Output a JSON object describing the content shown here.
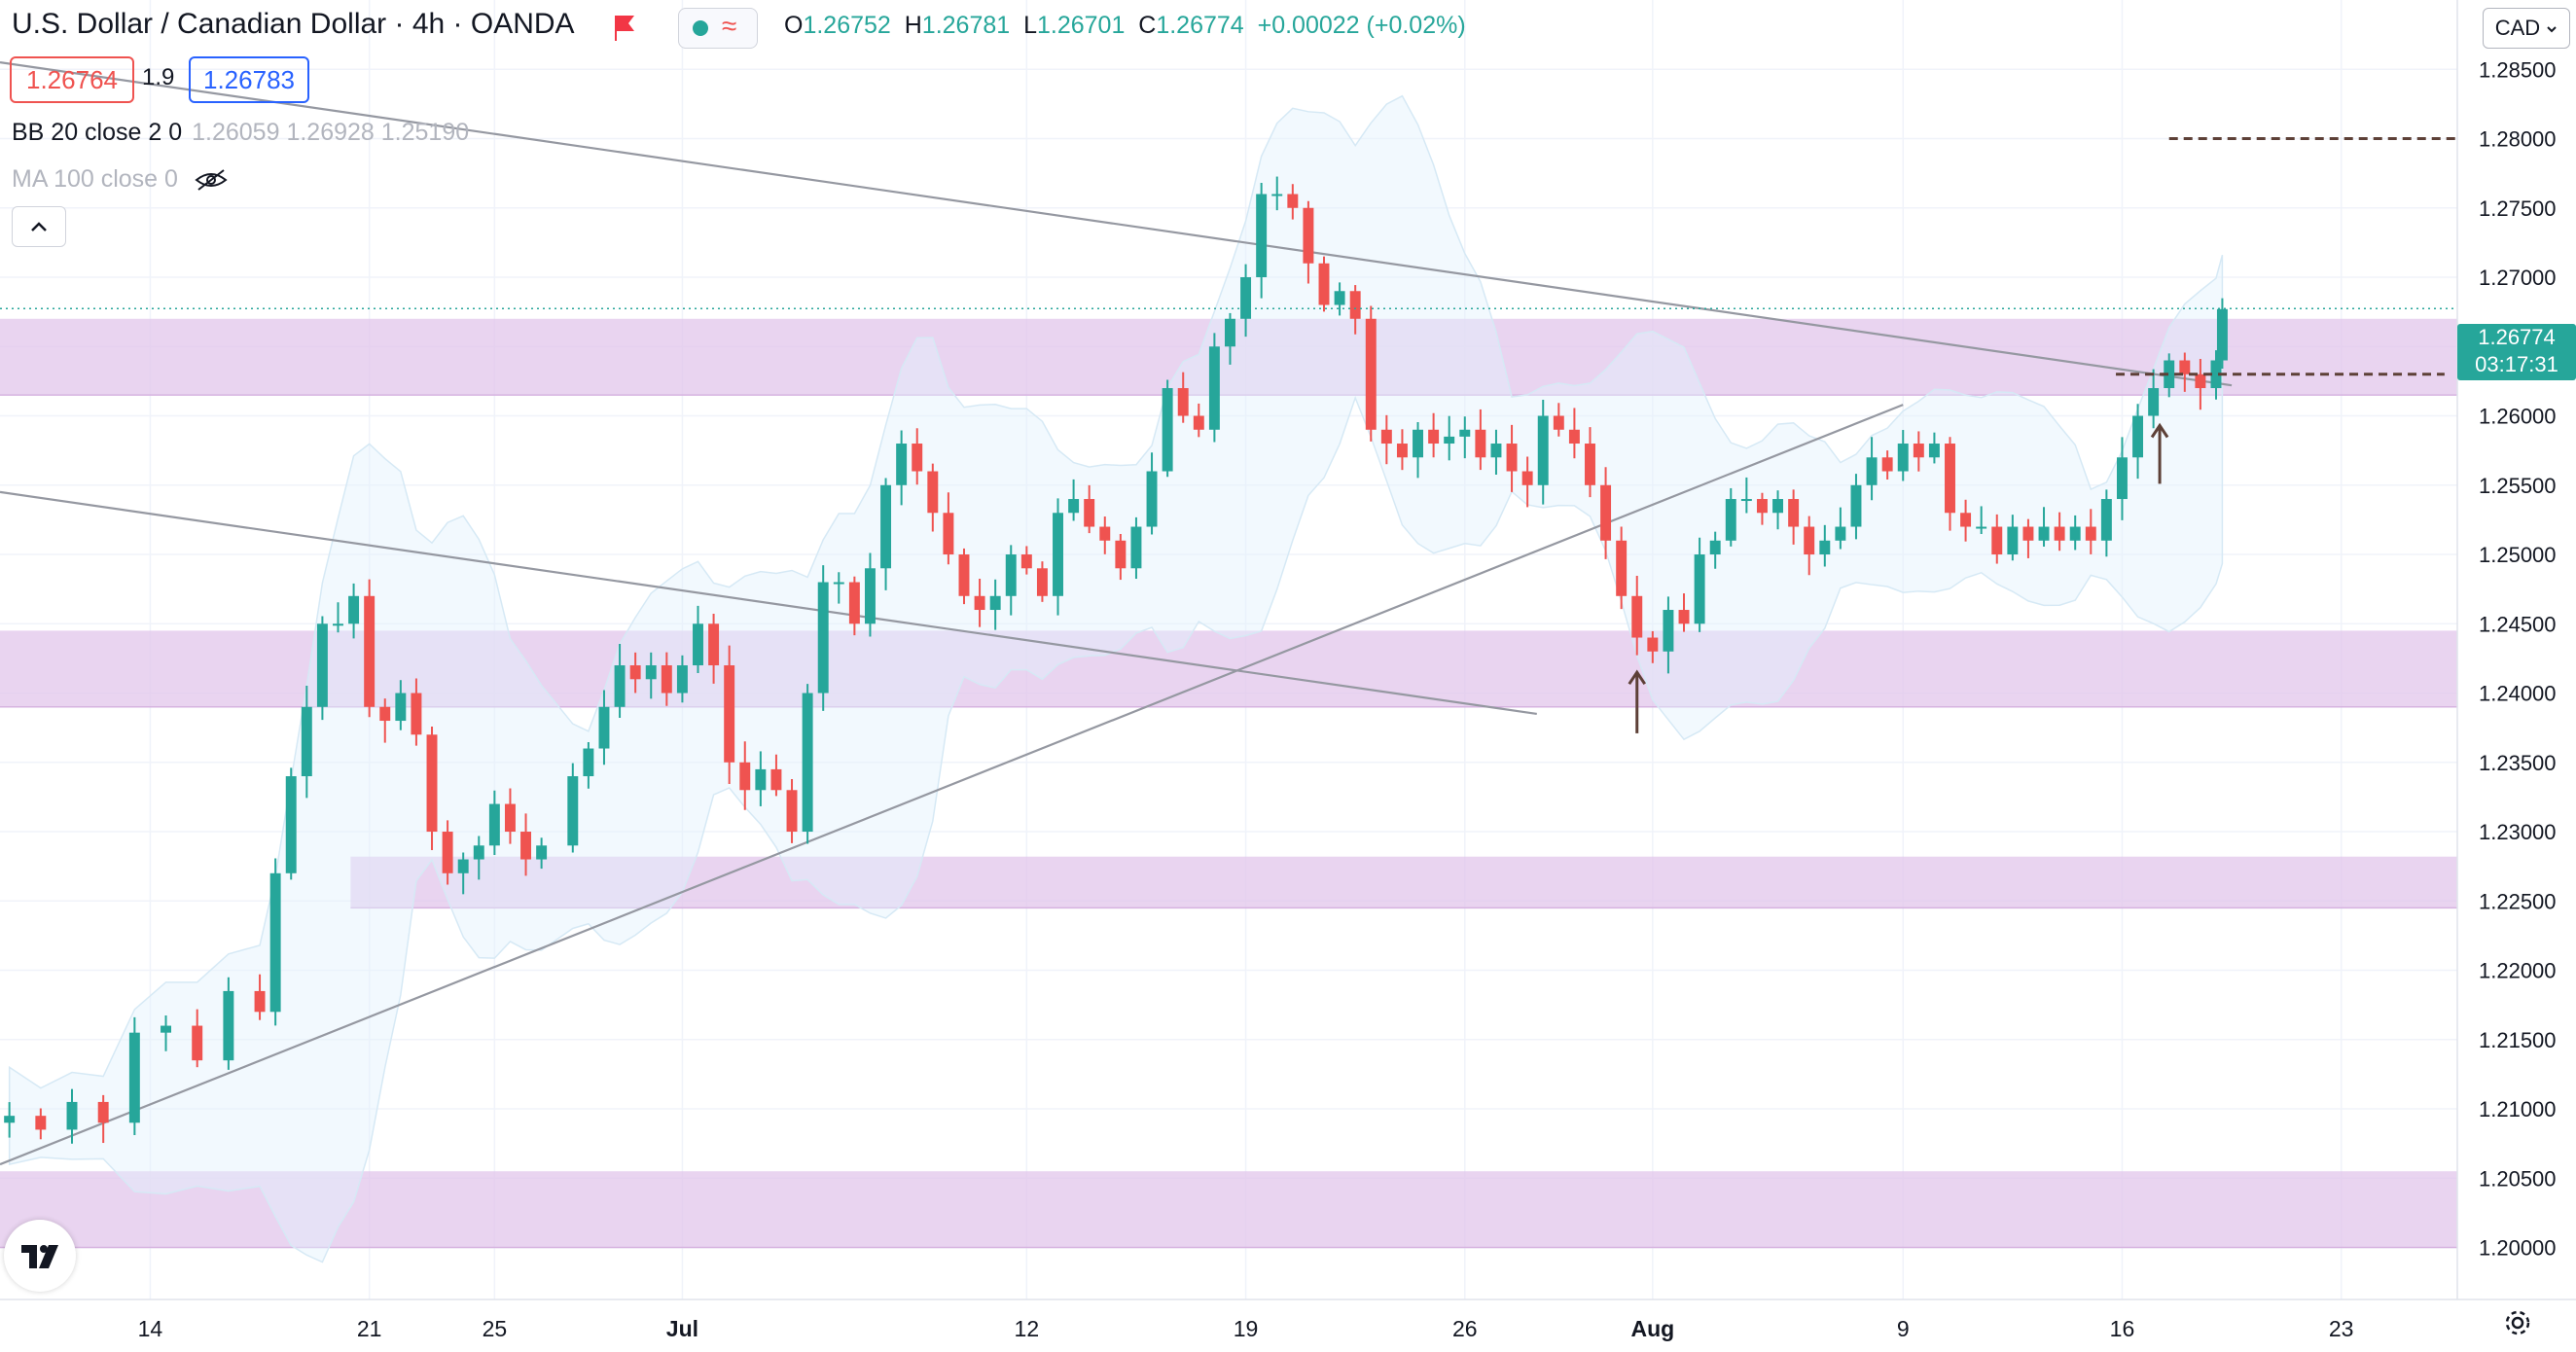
{
  "header": {
    "title": "U.S. Dollar / Canadian Dollar · 4h · OANDA",
    "ohlc": [
      {
        "k": "O",
        "v": "1.26752"
      },
      {
        "k": "H",
        "v": "1.26781"
      },
      {
        "k": "L",
        "v": "1.26701"
      },
      {
        "k": "C",
        "v": "1.26774"
      }
    ],
    "change": "+0.00022 (+0.02%)",
    "market_status": "green-dot",
    "wave_icon": "≈"
  },
  "trade": {
    "bid": "1.26764",
    "spread": "1.9",
    "ask": "1.26783"
  },
  "indicators": {
    "bb_name": "BB 20 close 2 0",
    "bb_values": "1.26059  1.26928  1.25190",
    "ma_name": "MA 100 close 0"
  },
  "currency_button": "CAD",
  "last_price": {
    "price": "1.26774",
    "countdown": "03:17:31"
  },
  "colors": {
    "up": "#26a69a",
    "down": "#ef5350",
    "zone": "#e1c4ea",
    "trendline": "#9598a1",
    "dashed": "#5d4037"
  },
  "chart_data": {
    "type": "candlestick",
    "symbol": "USDCAD",
    "timeframe": "4h",
    "y_ticks": [
      "1.28500",
      "1.28000",
      "1.27500",
      "1.27000",
      "1.26500",
      "1.26000",
      "1.25500",
      "1.25000",
      "1.24500",
      "1.24000",
      "1.23500",
      "1.23000",
      "1.22500",
      "1.22000",
      "1.21500",
      "1.21000",
      "1.20500",
      "1.20000"
    ],
    "x_ticks": [
      {
        "label": "14",
        "day": 14
      },
      {
        "label": "21",
        "day": 21
      },
      {
        "label": "25",
        "day": 25
      },
      {
        "label": "Jul",
        "day": 31
      },
      {
        "label": "12",
        "day": 42
      },
      {
        "label": "19",
        "day": 49
      },
      {
        "label": "26",
        "day": 56
      },
      {
        "label": "Aug",
        "day": 62
      },
      {
        "label": "9",
        "day": 70
      },
      {
        "label": "16",
        "day": 77
      },
      {
        "label": "23",
        "day": 84
      }
    ],
    "ylim": [
      1.19625,
      1.29
    ],
    "xlim_days": [
      9.2,
      91.5
    ],
    "closes": [
      [
        9.5,
        1.2095
      ],
      [
        10.5,
        1.2085
      ],
      [
        11.5,
        1.2105
      ],
      [
        12.5,
        1.209
      ],
      [
        13.5,
        1.2155
      ],
      [
        14.5,
        1.216
      ],
      [
        15.5,
        1.2135
      ],
      [
        16.5,
        1.2185
      ],
      [
        17.5,
        1.217
      ],
      [
        18.0,
        1.227
      ],
      [
        18.5,
        1.234
      ],
      [
        19.0,
        1.239
      ],
      [
        19.5,
        1.245
      ],
      [
        20.0,
        1.245
      ],
      [
        20.5,
        1.247
      ],
      [
        21.0,
        1.239
      ],
      [
        21.5,
        1.238
      ],
      [
        22.0,
        1.24
      ],
      [
        22.5,
        1.237
      ],
      [
        23.0,
        1.23
      ],
      [
        23.5,
        1.227
      ],
      [
        24.0,
        1.228
      ],
      [
        24.5,
        1.229
      ],
      [
        25.0,
        1.232
      ],
      [
        25.5,
        1.23
      ],
      [
        26.0,
        1.228
      ],
      [
        26.5,
        1.229
      ],
      [
        27.5,
        1.234
      ],
      [
        28.0,
        1.236
      ],
      [
        28.5,
        1.239
      ],
      [
        29.0,
        1.242
      ],
      [
        29.5,
        1.241
      ],
      [
        30.0,
        1.242
      ],
      [
        30.5,
        1.24
      ],
      [
        31.0,
        1.242
      ],
      [
        31.5,
        1.245
      ],
      [
        32.0,
        1.242
      ],
      [
        32.5,
        1.235
      ],
      [
        33.0,
        1.233
      ],
      [
        33.5,
        1.2345
      ],
      [
        34.0,
        1.233
      ],
      [
        34.5,
        1.23
      ],
      [
        35.0,
        1.24
      ],
      [
        35.5,
        1.248
      ],
      [
        36.0,
        1.248
      ],
      [
        36.5,
        1.245
      ],
      [
        37.0,
        1.249
      ],
      [
        37.5,
        1.255
      ],
      [
        38.0,
        1.258
      ],
      [
        38.5,
        1.256
      ],
      [
        39.0,
        1.253
      ],
      [
        39.5,
        1.25
      ],
      [
        40.0,
        1.247
      ],
      [
        40.5,
        1.246
      ],
      [
        41.0,
        1.247
      ],
      [
        41.5,
        1.25
      ],
      [
        42.0,
        1.249
      ],
      [
        42.5,
        1.247
      ],
      [
        43.0,
        1.253
      ],
      [
        43.5,
        1.254
      ],
      [
        44.0,
        1.252
      ],
      [
        44.5,
        1.251
      ],
      [
        45.0,
        1.249
      ],
      [
        45.5,
        1.252
      ],
      [
        46.0,
        1.256
      ],
      [
        46.5,
        1.262
      ],
      [
        47.0,
        1.26
      ],
      [
        47.5,
        1.259
      ],
      [
        48.0,
        1.265
      ],
      [
        48.5,
        1.267
      ],
      [
        49.0,
        1.27
      ],
      [
        49.5,
        1.276
      ],
      [
        50.0,
        1.276
      ],
      [
        50.5,
        1.275
      ],
      [
        51.0,
        1.271
      ],
      [
        51.5,
        1.268
      ],
      [
        52.0,
        1.269
      ],
      [
        52.5,
        1.267
      ],
      [
        53.0,
        1.259
      ],
      [
        53.5,
        1.258
      ],
      [
        54.0,
        1.257
      ],
      [
        54.5,
        1.259
      ],
      [
        55.0,
        1.258
      ],
      [
        55.5,
        1.2585
      ],
      [
        56.0,
        1.259
      ],
      [
        56.5,
        1.257
      ],
      [
        57.0,
        1.258
      ],
      [
        57.5,
        1.256
      ],
      [
        58.0,
        1.255
      ],
      [
        58.5,
        1.26
      ],
      [
        59.0,
        1.259
      ],
      [
        59.5,
        1.258
      ],
      [
        60.0,
        1.255
      ],
      [
        60.5,
        1.251
      ],
      [
        61.0,
        1.247
      ],
      [
        61.5,
        1.244
      ],
      [
        62.0,
        1.243
      ],
      [
        62.5,
        1.246
      ],
      [
        63.0,
        1.245
      ],
      [
        63.5,
        1.25
      ],
      [
        64.0,
        1.251
      ],
      [
        64.5,
        1.254
      ],
      [
        65.0,
        1.254
      ],
      [
        65.5,
        1.253
      ],
      [
        66.0,
        1.254
      ],
      [
        66.5,
        1.252
      ],
      [
        67.0,
        1.25
      ],
      [
        67.5,
        1.251
      ],
      [
        68.0,
        1.252
      ],
      [
        68.5,
        1.255
      ],
      [
        69.0,
        1.257
      ],
      [
        69.5,
        1.256
      ],
      [
        70.0,
        1.258
      ],
      [
        70.5,
        1.257
      ],
      [
        71.0,
        1.258
      ],
      [
        71.5,
        1.253
      ],
      [
        72.0,
        1.252
      ],
      [
        72.5,
        1.252
      ],
      [
        73.0,
        1.25
      ],
      [
        73.5,
        1.252
      ],
      [
        74.0,
        1.251
      ],
      [
        74.5,
        1.252
      ],
      [
        75.0,
        1.251
      ],
      [
        75.5,
        1.252
      ],
      [
        76.0,
        1.251
      ],
      [
        76.5,
        1.254
      ],
      [
        77.0,
        1.257
      ],
      [
        77.5,
        1.26
      ],
      [
        78.0,
        1.262
      ],
      [
        78.5,
        1.264
      ],
      [
        79.0,
        1.263
      ],
      [
        79.5,
        1.262
      ],
      [
        80.0,
        1.264
      ],
      [
        80.2,
        1.2677
      ]
    ],
    "zones": [
      {
        "from": 1.2615,
        "to": 1.267
      },
      {
        "from": 1.239,
        "to": 1.2445
      },
      {
        "from": 1.2245,
        "to": 1.2282
      },
      {
        "from": 1.2,
        "to": 1.2055
      }
    ],
    "levels": [
      {
        "price": 1.28,
        "from_day": 78.5,
        "to_day": 88.5
      },
      {
        "price": 1.263,
        "from_day": 76.8,
        "to_day": 87.3
      }
    ]
  }
}
